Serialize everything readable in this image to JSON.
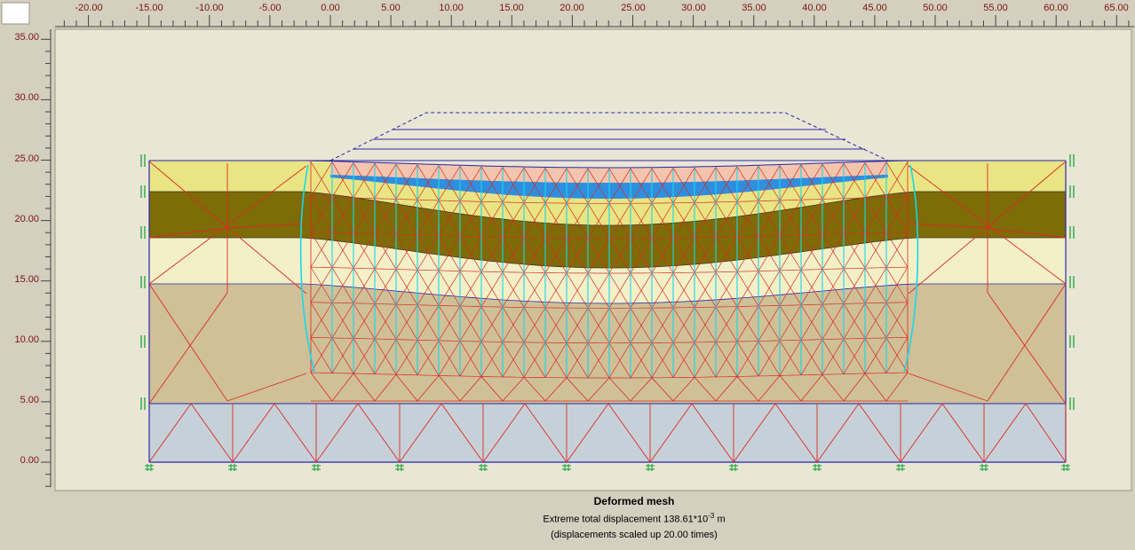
{
  "colors": {
    "window_bg": "#d4cfbf",
    "plot_bg": "#eae6d6",
    "soil_yellow": "#e9e584",
    "soil_olive": "#7d6c08",
    "soil_cream": "#f3f0c8",
    "soil_tan": "#cfc098",
    "soil_bluegray": "#c6d0d8",
    "fill_pink": "#f3c4ae",
    "fill_blue": "#2e8fe0",
    "mesh_red": "#dd2b20",
    "drain_cyan": "#19d7e8",
    "geometry_navy": "#2828a8",
    "fixity_green": "#0b9e2d",
    "ruler_text": "#7a1414",
    "tick": "#444444"
  },
  "rulers": {
    "top": [
      "-20.00",
      "-15.00",
      "-10.00",
      "-5.00",
      "0.00",
      "5.00",
      "10.00",
      "15.00",
      "20.00",
      "25.00",
      "30.00",
      "35.00",
      "40.00",
      "45.00",
      "50.00",
      "55.00",
      "60.00",
      "65.00"
    ],
    "left": [
      "35.00",
      "30.00",
      "25.00",
      "20.00",
      "15.00",
      "10.00",
      "5.00",
      "0.00"
    ]
  },
  "caption": {
    "title": "Deformed mesh",
    "line2_prefix": "Extreme total displacement 138.61*10",
    "line2_sup": "-3",
    "line2_suffix": " m",
    "line3": "(displacements scaled up 20.00 times)"
  }
}
